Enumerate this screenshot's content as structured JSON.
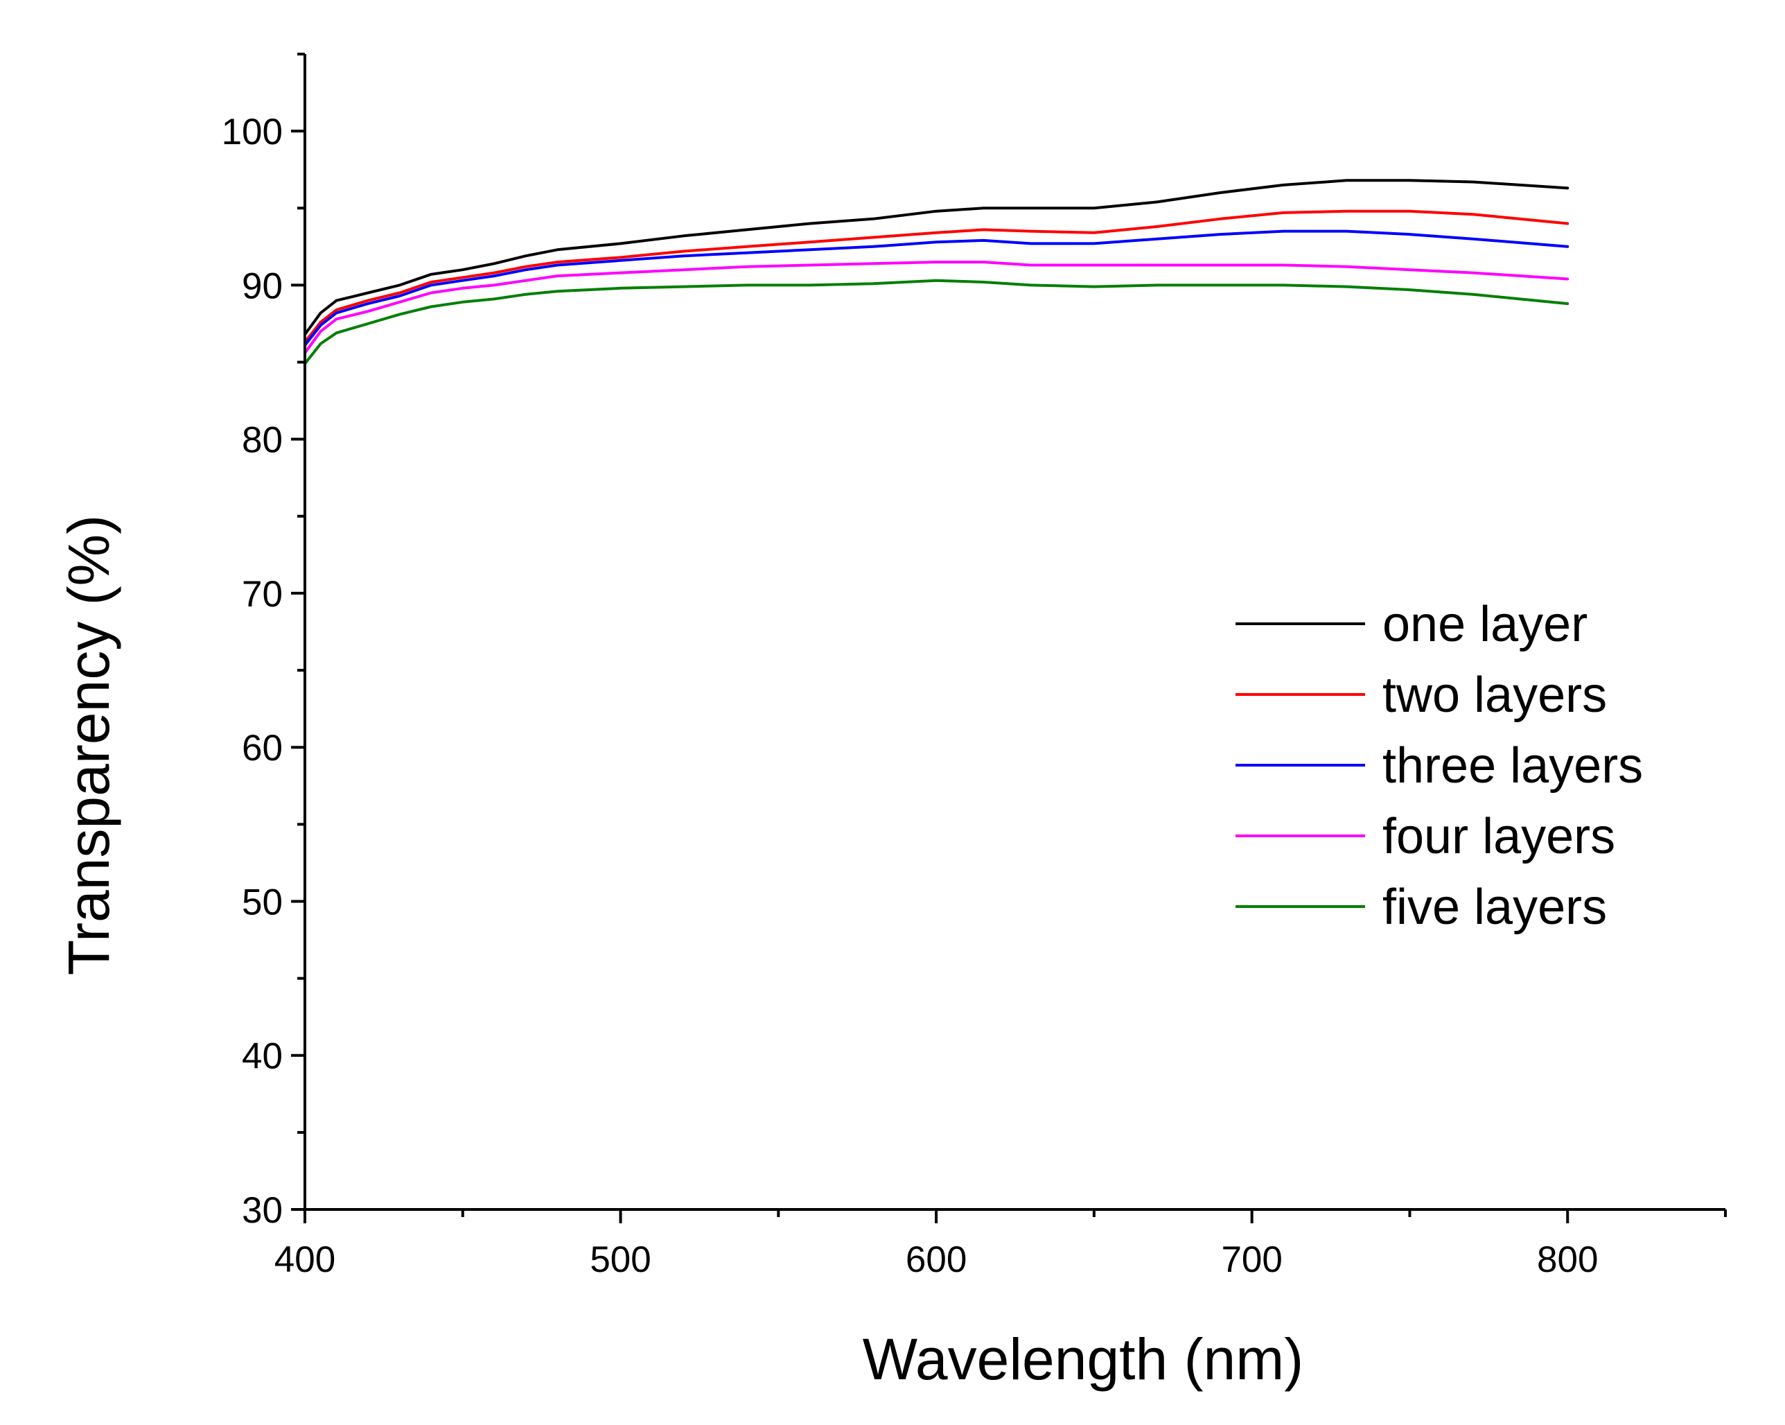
{
  "chart_data": {
    "type": "line",
    "title": "",
    "xlabel": "Wavelength (nm)",
    "ylabel": "Transparency (%)",
    "xlim": [
      400,
      850
    ],
    "ylim": [
      30,
      105
    ],
    "xticks": [
      400,
      500,
      600,
      700,
      800
    ],
    "xtick_labels": [
      "400",
      "500",
      "600",
      "700",
      "800"
    ],
    "yticks": [
      30,
      40,
      50,
      60,
      70,
      80,
      90,
      100
    ],
    "ytick_labels": [
      "30",
      "40",
      "50",
      "60",
      "70",
      "80",
      "90",
      "100"
    ],
    "grid": false,
    "legend_position": "center-right",
    "x": [
      400,
      405,
      410,
      420,
      430,
      440,
      450,
      460,
      470,
      480,
      500,
      520,
      540,
      560,
      580,
      600,
      615,
      630,
      650,
      670,
      690,
      710,
      730,
      750,
      770,
      800
    ],
    "series": [
      {
        "name": "one layer",
        "color": "#000000",
        "values": [
          86.8,
          88.2,
          89.0,
          89.5,
          90.0,
          90.7,
          91.0,
          91.4,
          91.9,
          92.3,
          92.7,
          93.2,
          93.6,
          94.0,
          94.3,
          94.8,
          95.0,
          95.0,
          95.0,
          95.4,
          96.0,
          96.5,
          96.8,
          96.8,
          96.7,
          96.3
        ]
      },
      {
        "name": "two layers",
        "color": "#ff0000",
        "values": [
          86.3,
          87.6,
          88.4,
          89.0,
          89.5,
          90.2,
          90.5,
          90.8,
          91.2,
          91.5,
          91.8,
          92.2,
          92.5,
          92.8,
          93.1,
          93.4,
          93.6,
          93.5,
          93.4,
          93.8,
          94.3,
          94.7,
          94.8,
          94.8,
          94.6,
          94.0
        ]
      },
      {
        "name": "three layers",
        "color": "#0000ff",
        "values": [
          86.1,
          87.4,
          88.2,
          88.8,
          89.3,
          90.0,
          90.3,
          90.6,
          91.0,
          91.3,
          91.6,
          91.9,
          92.1,
          92.3,
          92.5,
          92.8,
          92.9,
          92.7,
          92.7,
          93.0,
          93.3,
          93.5,
          93.5,
          93.3,
          93.0,
          92.5
        ]
      },
      {
        "name": "four layers",
        "color": "#ff00ff",
        "values": [
          85.6,
          87.0,
          87.8,
          88.3,
          88.9,
          89.5,
          89.8,
          90.0,
          90.3,
          90.6,
          90.8,
          91.0,
          91.2,
          91.3,
          91.4,
          91.5,
          91.5,
          91.3,
          91.3,
          91.3,
          91.3,
          91.3,
          91.2,
          91.0,
          90.8,
          90.4
        ]
      },
      {
        "name": "five layers",
        "color": "#007f00",
        "values": [
          84.9,
          86.2,
          86.9,
          87.5,
          88.1,
          88.6,
          88.9,
          89.1,
          89.4,
          89.6,
          89.8,
          89.9,
          90.0,
          90.0,
          90.1,
          90.3,
          90.2,
          90.0,
          89.9,
          90.0,
          90.0,
          90.0,
          89.9,
          89.7,
          89.4,
          88.8
        ]
      }
    ]
  }
}
